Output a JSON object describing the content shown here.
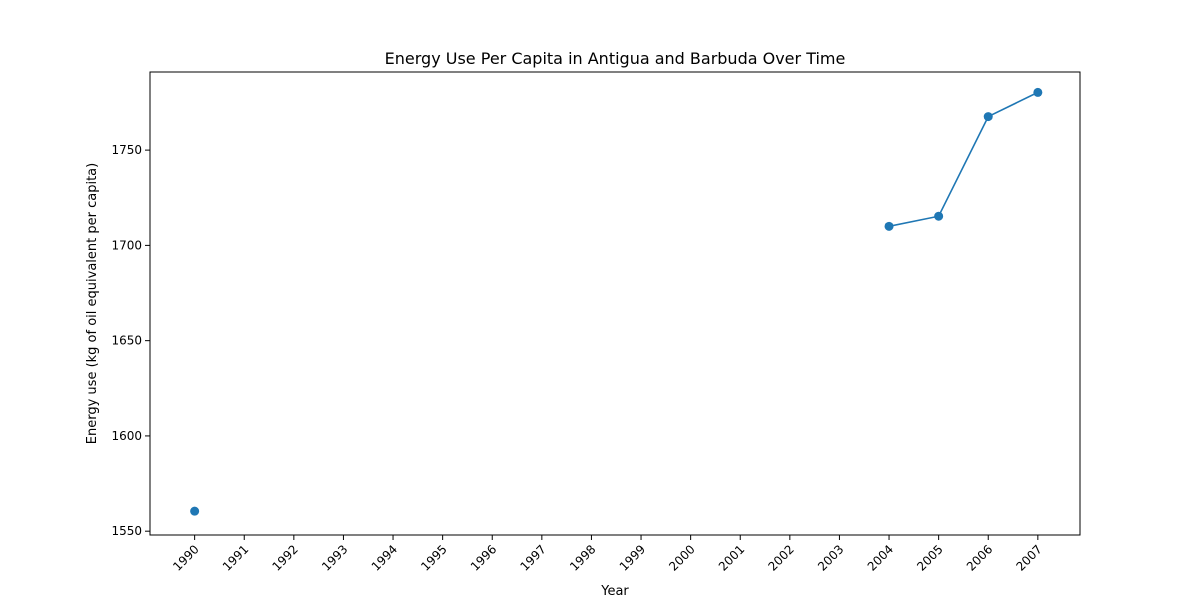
{
  "chart_data": {
    "type": "line",
    "title": "Energy Use Per Capita in Antigua and Barbuda Over Time",
    "xlabel": "Year",
    "ylabel": "Energy use (kg of oil equivalent per capita)",
    "x_ticks": [
      "1990",
      "1991",
      "1992",
      "1993",
      "1994",
      "1995",
      "1996",
      "1997",
      "1998",
      "1999",
      "2000",
      "2001",
      "2002",
      "2003",
      "2004",
      "2005",
      "2006",
      "2007"
    ],
    "y_ticks": [
      1550,
      1600,
      1650,
      1700,
      1750
    ],
    "ylim": [
      1548,
      1791
    ],
    "xlim": [
      1989.1,
      2007.85
    ],
    "grid": false,
    "series": [
      {
        "color": "#1f77b4",
        "points": [
          {
            "x": 1990,
            "y": 1560.5
          },
          {
            "x": 2004,
            "y": 1710.0
          },
          {
            "x": 2005,
            "y": 1715.3
          },
          {
            "x": 2006,
            "y": 1767.6
          },
          {
            "x": 2007,
            "y": 1780.3
          }
        ],
        "segments": [
          [
            2004,
            2005,
            2006,
            2007
          ]
        ]
      }
    ]
  }
}
